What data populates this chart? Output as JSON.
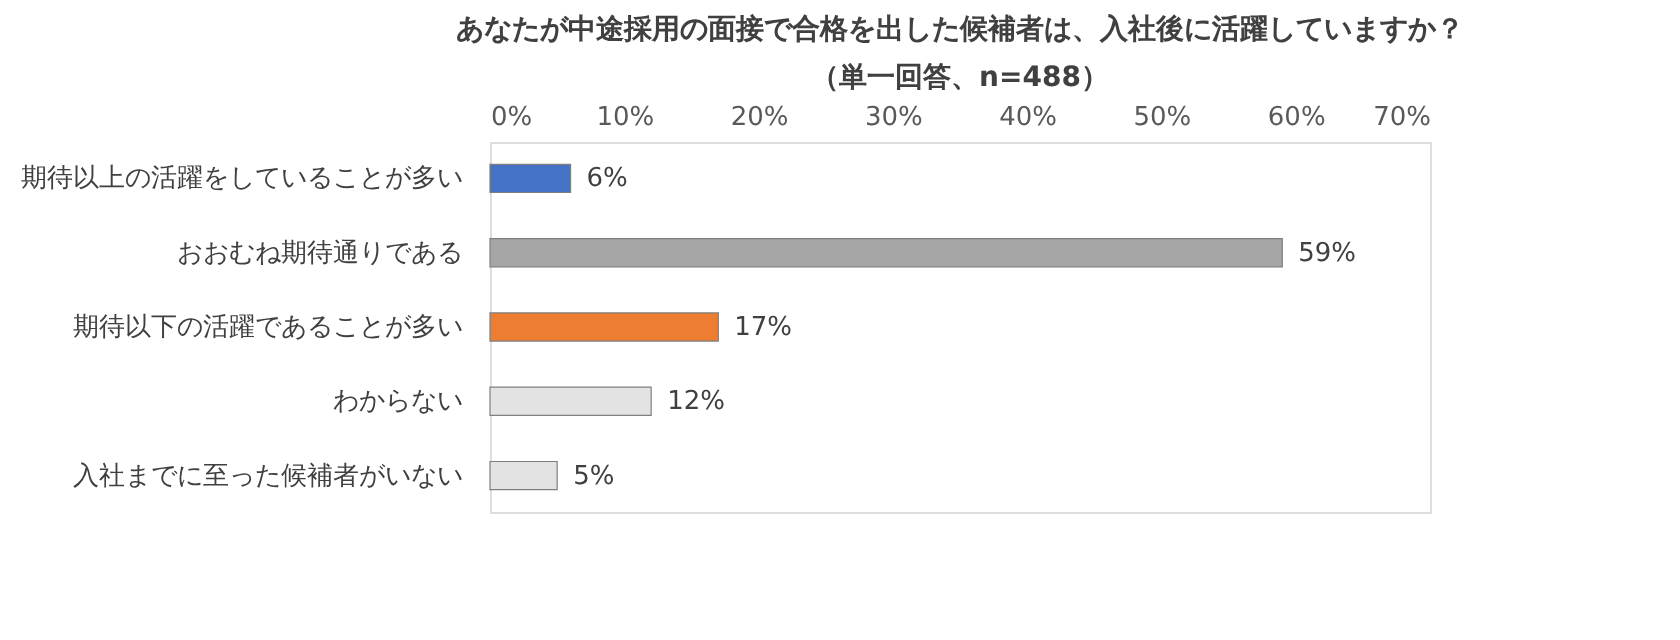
{
  "chart_data": {
    "type": "bar",
    "orientation": "horizontal",
    "title": "あなたが中途採用の面接で合格を出した候補者は、入社後に活躍していますか？",
    "subtitle": "（単一回答、n=488）",
    "categories": [
      "期待以上の活躍をしていることが多い",
      "おおむね期待通りである",
      "期待以下の活躍であることが多い",
      "わからない",
      "入社までに至った候補者がいない"
    ],
    "values": [
      6,
      59,
      17,
      12,
      5
    ],
    "colors": [
      "#4472c4",
      "#a5a5a5",
      "#ed7d31",
      "#e3e3e3",
      "#e3e3e3"
    ],
    "value_labels": [
      "6%",
      "59%",
      "17%",
      "12%",
      "5%"
    ],
    "xlim": [
      0,
      70
    ],
    "xticks": [
      {
        "value": 0,
        "label": "0%"
      },
      {
        "value": 10,
        "label": "10%"
      },
      {
        "value": 20,
        "label": "20%"
      },
      {
        "value": 30,
        "label": "30%"
      },
      {
        "value": 40,
        "label": "40%"
      },
      {
        "value": 50,
        "label": "50%"
      },
      {
        "value": 60,
        "label": "60%"
      },
      {
        "value": 70,
        "label": "70%"
      }
    ]
  }
}
